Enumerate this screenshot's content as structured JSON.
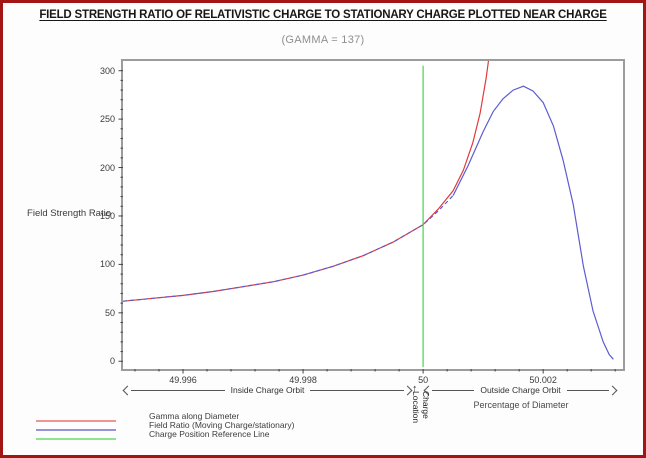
{
  "window": {
    "border_color": "#a31414",
    "background": "#fdfdfd"
  },
  "chart_data": {
    "type": "line",
    "title": "FIELD STRENGTH RATIO OF RELATIVISTIC CHARGE TO STATIONARY CHARGE PLOTTED NEAR CHARGE",
    "subtitle": "(GAMMA = 137)",
    "ylabel": "Field Strength Ratio",
    "xlabel": "Percentage of Diameter",
    "xlim": [
      49.995,
      50.00333
    ],
    "ylim": [
      -8,
      310
    ],
    "x_ticks": [
      49.996,
      49.998,
      50,
      50.002
    ],
    "x_tick_labels": [
      "49.996",
      "49.998",
      "50",
      "50.002"
    ],
    "x_minor_step": 0.0004,
    "y_ticks": [
      0,
      50,
      100,
      150,
      200,
      250,
      300
    ],
    "y_tick_labels": [
      "0",
      "50",
      "100",
      "150",
      "200",
      "250",
      "300"
    ],
    "y_minor_step": 10,
    "grid": false,
    "legend_position": "bottom-left",
    "frame_color": "#9c9c9c",
    "series": [
      {
        "name": "Gamma along Diameter",
        "color": "#e03a3a",
        "style": "solid",
        "points": [
          [
            49.995,
            62
          ],
          [
            49.9955,
            65
          ],
          [
            49.996,
            68
          ],
          [
            49.9965,
            72
          ],
          [
            49.997,
            77
          ],
          [
            49.9975,
            82
          ],
          [
            49.998,
            89
          ],
          [
            49.9985,
            98
          ],
          [
            49.999,
            109
          ],
          [
            49.9995,
            123
          ],
          [
            50.0,
            141
          ],
          [
            50.00025,
            157
          ],
          [
            50.0005,
            176
          ],
          [
            50.00067,
            197
          ],
          [
            50.00083,
            226
          ],
          [
            50.00095,
            256
          ],
          [
            50.00105,
            292
          ],
          [
            50.0011,
            315
          ]
        ]
      },
      {
        "name": "Field Ratio (Moving Charge/stationary)",
        "color": "#5c5cd0",
        "style": "dashed-then-solid",
        "dash_until": 50.0005,
        "points": [
          [
            49.995,
            62
          ],
          [
            49.9955,
            65
          ],
          [
            49.996,
            68
          ],
          [
            49.9965,
            72
          ],
          [
            49.997,
            77
          ],
          [
            49.9975,
            82
          ],
          [
            49.998,
            89
          ],
          [
            49.9985,
            98
          ],
          [
            49.999,
            109
          ],
          [
            49.9995,
            123
          ],
          [
            50.0,
            141
          ],
          [
            50.00025,
            155
          ],
          [
            50.0005,
            171
          ],
          [
            50.00075,
            202
          ],
          [
            50.001,
            237
          ],
          [
            50.00117,
            258
          ],
          [
            50.00133,
            271
          ],
          [
            50.0015,
            280
          ],
          [
            50.00167,
            284
          ],
          [
            50.00183,
            279
          ],
          [
            50.002,
            267
          ],
          [
            50.00217,
            243
          ],
          [
            50.00233,
            208
          ],
          [
            50.0025,
            162
          ],
          [
            50.00267,
            98
          ],
          [
            50.00283,
            52
          ],
          [
            50.003,
            20
          ],
          [
            50.0031,
            7
          ],
          [
            50.00317,
            2
          ]
        ]
      },
      {
        "name": "Charge Position Reference Line",
        "color": "#46d546",
        "style": "solid",
        "points": [
          [
            50,
            -6
          ],
          [
            50,
            305
          ]
        ]
      }
    ],
    "legend": [
      {
        "label": "Gamma along Diameter",
        "color": "#ef9494"
      },
      {
        "label": "Field Ratio (Moving Charge/stationary)",
        "color": "#9494d6"
      },
      {
        "label": "Charge Position Reference Line",
        "color": "#8fe48f"
      }
    ],
    "annotations": {
      "inside_orbit": "Inside Charge Orbit",
      "outside_orbit": "Outside Charge Orbit",
      "up_arrow": "↑",
      "charge_location_line1": "Charge",
      "charge_location_line2": "Location"
    }
  }
}
